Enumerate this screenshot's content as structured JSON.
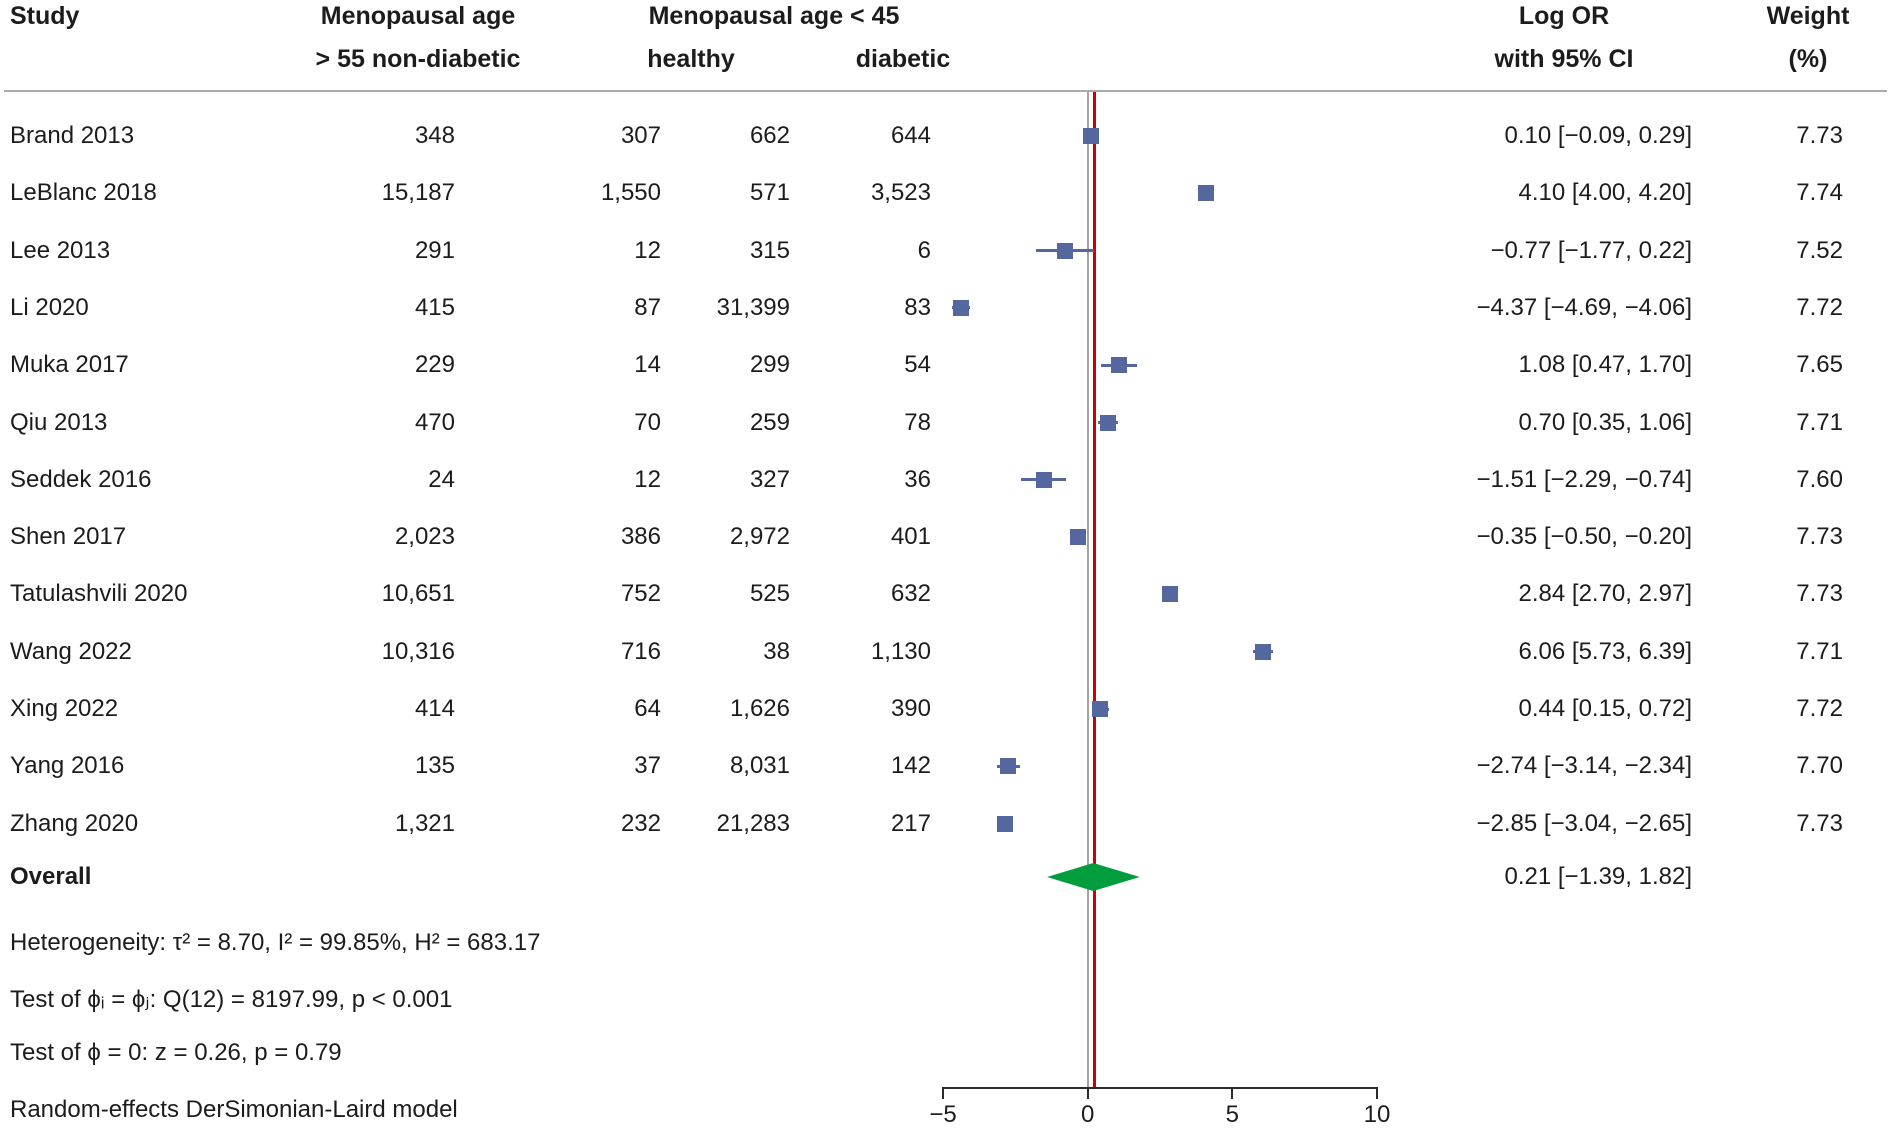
{
  "header": {
    "study": "Study",
    "group1_line1": "Menopausal age",
    "group1_line2": "> 55 non-diabetic",
    "group2": "Menopausal age < 45",
    "sub_healthy": "healthy",
    "sub_diabetic": "diabetic",
    "effect_line1": "Log OR",
    "effect_line2": "with 95% CI",
    "weight_line1": "Weight",
    "weight_line2": "(%)"
  },
  "stats": [
    "Heterogeneity: τ² = 8.70, I² = 99.85%, H² = 683.17",
    "Test of ϕᵢ = ϕⱼ: Q(12) = 8197.99, p < 0.001",
    "Test of ϕ = 0: z = 0.26, p = 0.79",
    "Random-effects DerSimonian-Laird model"
  ],
  "colors": {
    "marker_blue": "#54679e",
    "diamond_green": "#029e3e",
    "ref_line_gray": "#a3a3a3",
    "overall_line_red": "#d00000",
    "divider_gray": "#ababab"
  },
  "chart_data": {
    "type": "forest",
    "effect_measure": "Log OR with 95% CI",
    "model": "Random-effects DerSimonian-Laird model",
    "x_axis": {
      "range": [
        -5,
        10
      ],
      "ticks": [
        -5,
        0,
        5,
        10
      ],
      "tick_labels": [
        "−5",
        "0",
        "5",
        "10"
      ],
      "reference_line": 0,
      "overall_line": 0.21
    },
    "rows": [
      {
        "study": "Brand 2013",
        "counts": [
          "348",
          "307",
          "662",
          "644"
        ],
        "log_or": 0.1,
        "ci_low": -0.09,
        "ci_high": 0.29,
        "ci_label": "0.10 [−0.09, 0.29]",
        "weight": "7.73"
      },
      {
        "study": "LeBlanc 2018",
        "counts": [
          "15,187",
          "1,550",
          "571",
          "3,523"
        ],
        "log_or": 4.1,
        "ci_low": 4.0,
        "ci_high": 4.2,
        "ci_label": "4.10 [4.00, 4.20]",
        "weight": "7.74"
      },
      {
        "study": "Lee 2013",
        "counts": [
          "291",
          "12",
          "315",
          "6"
        ],
        "log_or": -0.77,
        "ci_low": -1.77,
        "ci_high": 0.22,
        "ci_label": "−0.77 [−1.77, 0.22]",
        "weight": "7.52"
      },
      {
        "study": "Li 2020",
        "counts": [
          "415",
          "87",
          "31,399",
          "83"
        ],
        "log_or": -4.37,
        "ci_low": -4.69,
        "ci_high": -4.06,
        "ci_label": "−4.37 [−4.69, −4.06]",
        "weight": "7.72"
      },
      {
        "study": "Muka 2017",
        "counts": [
          "229",
          "14",
          "299",
          "54"
        ],
        "log_or": 1.08,
        "ci_low": 0.47,
        "ci_high": 1.7,
        "ci_label": "1.08 [0.47, 1.70]",
        "weight": "7.65"
      },
      {
        "study": "Qiu 2013",
        "counts": [
          "470",
          "70",
          "259",
          "78"
        ],
        "log_or": 0.7,
        "ci_low": 0.35,
        "ci_high": 1.06,
        "ci_label": "0.70 [0.35, 1.06]",
        "weight": "7.71"
      },
      {
        "study": "Seddek 2016",
        "counts": [
          "24",
          "12",
          "327",
          "36"
        ],
        "log_or": -1.51,
        "ci_low": -2.29,
        "ci_high": -0.74,
        "ci_label": "−1.51 [−2.29, −0.74]",
        "weight": "7.60"
      },
      {
        "study": "Shen 2017",
        "counts": [
          "2,023",
          "386",
          "2,972",
          "401"
        ],
        "log_or": -0.35,
        "ci_low": -0.5,
        "ci_high": -0.2,
        "ci_label": "−0.35 [−0.50, −0.20]",
        "weight": "7.73"
      },
      {
        "study": "Tatulashvili 2020",
        "counts": [
          "10,651",
          "752",
          "525",
          "632"
        ],
        "log_or": 2.84,
        "ci_low": 2.7,
        "ci_high": 2.97,
        "ci_label": "2.84 [2.70, 2.97]",
        "weight": "7.73"
      },
      {
        "study": "Wang 2022",
        "counts": [
          "10,316",
          "716",
          "38",
          "1,130"
        ],
        "log_or": 6.06,
        "ci_low": 5.73,
        "ci_high": 6.39,
        "ci_label": "6.06 [5.73, 6.39]",
        "weight": "7.71"
      },
      {
        "study": "Xing 2022",
        "counts": [
          "414",
          "64",
          "1,626",
          "390"
        ],
        "log_or": 0.44,
        "ci_low": 0.15,
        "ci_high": 0.72,
        "ci_label": "0.44 [0.15, 0.72]",
        "weight": "7.72"
      },
      {
        "study": "Yang 2016",
        "counts": [
          "135",
          "37",
          "8,031",
          "142"
        ],
        "log_or": -2.74,
        "ci_low": -3.14,
        "ci_high": -2.34,
        "ci_label": "−2.74 [−3.14, −2.34]",
        "weight": "7.70"
      },
      {
        "study": "Zhang 2020",
        "counts": [
          "1,321",
          "232",
          "21,283",
          "217"
        ],
        "log_or": -2.85,
        "ci_low": -3.04,
        "ci_high": -2.65,
        "ci_label": "−2.85 [−3.04, −2.65]",
        "weight": "7.73"
      }
    ],
    "overall": {
      "label": "Overall",
      "log_or": 0.21,
      "ci_low": -1.39,
      "ci_high": 1.82,
      "ci_label": "0.21 [−1.39, 1.82]"
    }
  }
}
